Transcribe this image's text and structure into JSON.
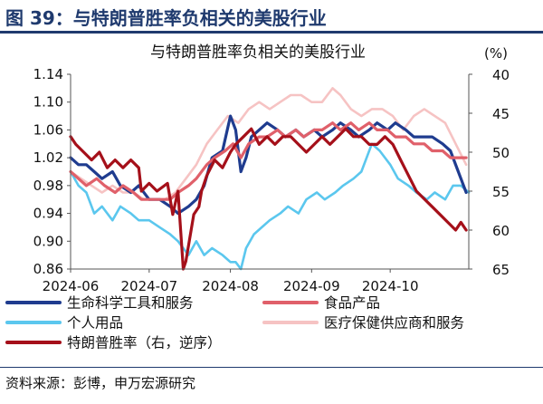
{
  "figure": {
    "title": "图 39：与特朗普胜率负相关的美股行业",
    "source": "资料来源：彭博，申万宏源研究"
  },
  "chart_data": {
    "type": "line",
    "title": "与特朗普胜率负相关的美股行业",
    "y_left": {
      "range": [
        0.86,
        1.14
      ],
      "ticks": [
        "1.14",
        "1.10",
        "1.06",
        "1.02",
        "0.98",
        "0.94",
        "0.90",
        "0.86"
      ]
    },
    "y_right": {
      "label": "(%)",
      "range": [
        40,
        65
      ],
      "inverted": true,
      "ticks": [
        "40",
        "45",
        "50",
        "55",
        "60",
        "65"
      ]
    },
    "x_axis": {
      "start": "2024-06-01",
      "end": "2024-10-31",
      "ticks": [
        "2024-06",
        "2024-07",
        "2024-08",
        "2024-09",
        "2024-10"
      ],
      "tick_dates": [
        "2024-06-01",
        "2024-07-01",
        "2024-08-01",
        "2024-09-01",
        "2024-10-01"
      ]
    },
    "legend_placement": "bottom",
    "series": [
      {
        "name": "生命科学工具和服务",
        "color": "#1f3c8f",
        "axis": "left",
        "width": 3.2,
        "points": [
          [
            "2024-06-01",
            1.02
          ],
          [
            "2024-06-04",
            1.01
          ],
          [
            "2024-06-07",
            1.01
          ],
          [
            "2024-06-10",
            1.0
          ],
          [
            "2024-06-13",
            0.99
          ],
          [
            "2024-06-17",
            1.0
          ],
          [
            "2024-06-20",
            0.98
          ],
          [
            "2024-06-24",
            0.97
          ],
          [
            "2024-06-27",
            0.98
          ],
          [
            "2024-07-01",
            0.96
          ],
          [
            "2024-07-05",
            0.96
          ],
          [
            "2024-07-09",
            0.95
          ],
          [
            "2024-07-12",
            0.94
          ],
          [
            "2024-07-16",
            0.95
          ],
          [
            "2024-07-19",
            0.96
          ],
          [
            "2024-07-22",
            0.98
          ],
          [
            "2024-07-25",
            1.02
          ],
          [
            "2024-07-29",
            1.03
          ],
          [
            "2024-08-01",
            1.08
          ],
          [
            "2024-08-03",
            1.06
          ],
          [
            "2024-08-05",
            1.0
          ],
          [
            "2024-08-07",
            1.02
          ],
          [
            "2024-08-09",
            1.05
          ],
          [
            "2024-08-12",
            1.06
          ],
          [
            "2024-08-15",
            1.07
          ],
          [
            "2024-08-19",
            1.06
          ],
          [
            "2024-08-22",
            1.05
          ],
          [
            "2024-08-26",
            1.06
          ],
          [
            "2024-08-29",
            1.05
          ],
          [
            "2024-09-02",
            1.06
          ],
          [
            "2024-09-05",
            1.05
          ],
          [
            "2024-09-09",
            1.06
          ],
          [
            "2024-09-12",
            1.07
          ],
          [
            "2024-09-16",
            1.06
          ],
          [
            "2024-09-19",
            1.05
          ],
          [
            "2024-09-23",
            1.06
          ],
          [
            "2024-09-26",
            1.07
          ],
          [
            "2024-09-30",
            1.06
          ],
          [
            "2024-10-03",
            1.07
          ],
          [
            "2024-10-07",
            1.06
          ],
          [
            "2024-10-10",
            1.05
          ],
          [
            "2024-10-14",
            1.05
          ],
          [
            "2024-10-17",
            1.05
          ],
          [
            "2024-10-21",
            1.04
          ],
          [
            "2024-10-24",
            1.03
          ],
          [
            "2024-10-27",
            1.0
          ],
          [
            "2024-10-30",
            0.97
          ]
        ]
      },
      {
        "name": "食品产品",
        "color": "#e0606a",
        "axis": "left",
        "width": 3.2,
        "points": [
          [
            "2024-06-01",
            1.0
          ],
          [
            "2024-06-04",
            0.99
          ],
          [
            "2024-06-07",
            0.98
          ],
          [
            "2024-06-11",
            0.99
          ],
          [
            "2024-06-14",
            0.98
          ],
          [
            "2024-06-18",
            0.97
          ],
          [
            "2024-06-21",
            0.98
          ],
          [
            "2024-06-25",
            0.97
          ],
          [
            "2024-06-28",
            0.96
          ],
          [
            "2024-07-02",
            0.96
          ],
          [
            "2024-07-05",
            0.96
          ],
          [
            "2024-07-09",
            0.96
          ],
          [
            "2024-07-12",
            0.97
          ],
          [
            "2024-07-16",
            0.98
          ],
          [
            "2024-07-19",
            0.99
          ],
          [
            "2024-07-23",
            1.01
          ],
          [
            "2024-07-26",
            1.02
          ],
          [
            "2024-07-30",
            1.03
          ],
          [
            "2024-08-02",
            1.04
          ],
          [
            "2024-08-05",
            1.02
          ],
          [
            "2024-08-08",
            1.04
          ],
          [
            "2024-08-12",
            1.05
          ],
          [
            "2024-08-15",
            1.05
          ],
          [
            "2024-08-19",
            1.06
          ],
          [
            "2024-08-22",
            1.05
          ],
          [
            "2024-08-26",
            1.06
          ],
          [
            "2024-08-29",
            1.05
          ],
          [
            "2024-09-02",
            1.06
          ],
          [
            "2024-09-05",
            1.06
          ],
          [
            "2024-09-09",
            1.07
          ],
          [
            "2024-09-12",
            1.06
          ],
          [
            "2024-09-16",
            1.07
          ],
          [
            "2024-09-19",
            1.06
          ],
          [
            "2024-09-23",
            1.07
          ],
          [
            "2024-09-26",
            1.06
          ],
          [
            "2024-09-30",
            1.06
          ],
          [
            "2024-10-03",
            1.05
          ],
          [
            "2024-10-07",
            1.05
          ],
          [
            "2024-10-10",
            1.04
          ],
          [
            "2024-10-14",
            1.04
          ],
          [
            "2024-10-17",
            1.03
          ],
          [
            "2024-10-21",
            1.03
          ],
          [
            "2024-10-24",
            1.02
          ],
          [
            "2024-10-27",
            1.02
          ],
          [
            "2024-10-30",
            1.02
          ]
        ]
      },
      {
        "name": "个人用品",
        "color": "#5bc7ee",
        "axis": "left",
        "width": 2.6,
        "points": [
          [
            "2024-06-01",
            1.0
          ],
          [
            "2024-06-04",
            0.98
          ],
          [
            "2024-06-07",
            0.97
          ],
          [
            "2024-06-10",
            0.94
          ],
          [
            "2024-06-13",
            0.95
          ],
          [
            "2024-06-17",
            0.93
          ],
          [
            "2024-06-20",
            0.95
          ],
          [
            "2024-06-24",
            0.94
          ],
          [
            "2024-06-27",
            0.93
          ],
          [
            "2024-07-01",
            0.93
          ],
          [
            "2024-07-05",
            0.92
          ],
          [
            "2024-07-09",
            0.91
          ],
          [
            "2024-07-12",
            0.9
          ],
          [
            "2024-07-16",
            0.88
          ],
          [
            "2024-07-19",
            0.9
          ],
          [
            "2024-07-22",
            0.88
          ],
          [
            "2024-07-25",
            0.89
          ],
          [
            "2024-07-29",
            0.88
          ],
          [
            "2024-08-01",
            0.87
          ],
          [
            "2024-08-03",
            0.87
          ],
          [
            "2024-08-05",
            0.86
          ],
          [
            "2024-08-07",
            0.89
          ],
          [
            "2024-08-10",
            0.91
          ],
          [
            "2024-08-13",
            0.92
          ],
          [
            "2024-08-16",
            0.93
          ],
          [
            "2024-08-20",
            0.94
          ],
          [
            "2024-08-23",
            0.95
          ],
          [
            "2024-08-27",
            0.94
          ],
          [
            "2024-08-30",
            0.96
          ],
          [
            "2024-09-03",
            0.97
          ],
          [
            "2024-09-06",
            0.96
          ],
          [
            "2024-09-10",
            0.97
          ],
          [
            "2024-09-13",
            0.98
          ],
          [
            "2024-09-17",
            0.99
          ],
          [
            "2024-09-20",
            1.0
          ],
          [
            "2024-09-24",
            1.04
          ],
          [
            "2024-09-27",
            1.03
          ],
          [
            "2024-10-01",
            1.01
          ],
          [
            "2024-10-04",
            0.99
          ],
          [
            "2024-10-08",
            0.98
          ],
          [
            "2024-10-11",
            0.97
          ],
          [
            "2024-10-15",
            0.96
          ],
          [
            "2024-10-18",
            0.97
          ],
          [
            "2024-10-22",
            0.96
          ],
          [
            "2024-10-25",
            0.98
          ],
          [
            "2024-10-28",
            0.98
          ],
          [
            "2024-10-31",
            0.97
          ]
        ]
      },
      {
        "name": "医疗保健供应商和服务",
        "color": "#f6c3c3",
        "axis": "left",
        "width": 2.6,
        "points": [
          [
            "2024-06-01",
            1.0
          ],
          [
            "2024-06-05",
            0.99
          ],
          [
            "2024-06-09",
            0.98
          ],
          [
            "2024-06-13",
            0.97
          ],
          [
            "2024-06-17",
            0.98
          ],
          [
            "2024-06-21",
            0.97
          ],
          [
            "2024-06-25",
            0.97
          ],
          [
            "2024-06-29",
            0.96
          ],
          [
            "2024-07-03",
            0.96
          ],
          [
            "2024-07-07",
            0.96
          ],
          [
            "2024-07-11",
            0.97
          ],
          [
            "2024-07-15",
            0.99
          ],
          [
            "2024-07-19",
            1.01
          ],
          [
            "2024-07-23",
            1.04
          ],
          [
            "2024-07-27",
            1.06
          ],
          [
            "2024-07-31",
            1.08
          ],
          [
            "2024-08-04",
            1.07
          ],
          [
            "2024-08-08",
            1.09
          ],
          [
            "2024-08-12",
            1.1
          ],
          [
            "2024-08-16",
            1.09
          ],
          [
            "2024-08-20",
            1.1
          ],
          [
            "2024-08-24",
            1.11
          ],
          [
            "2024-08-28",
            1.11
          ],
          [
            "2024-09-01",
            1.1
          ],
          [
            "2024-09-05",
            1.1
          ],
          [
            "2024-09-09",
            1.12
          ],
          [
            "2024-09-12",
            1.11
          ],
          [
            "2024-09-16",
            1.09
          ],
          [
            "2024-09-20",
            1.08
          ],
          [
            "2024-09-24",
            1.09
          ],
          [
            "2024-09-28",
            1.09
          ],
          [
            "2024-10-02",
            1.08
          ],
          [
            "2024-10-06",
            1.06
          ],
          [
            "2024-10-10",
            1.08
          ],
          [
            "2024-10-14",
            1.09
          ],
          [
            "2024-10-18",
            1.08
          ],
          [
            "2024-10-22",
            1.07
          ],
          [
            "2024-10-26",
            1.04
          ],
          [
            "2024-10-30",
            1.01
          ]
        ]
      },
      {
        "name": "特朗普胜率（右，逆序）",
        "color": "#a5101a",
        "axis": "right",
        "width": 3.2,
        "points": [
          [
            "2024-06-01",
            48
          ],
          [
            "2024-06-03",
            49
          ],
          [
            "2024-06-06",
            50
          ],
          [
            "2024-06-09",
            51
          ],
          [
            "2024-06-12",
            50
          ],
          [
            "2024-06-15",
            52
          ],
          [
            "2024-06-18",
            51
          ],
          [
            "2024-06-21",
            52
          ],
          [
            "2024-06-24",
            51
          ],
          [
            "2024-06-27",
            52
          ],
          [
            "2024-06-28",
            55
          ],
          [
            "2024-07-01",
            54
          ],
          [
            "2024-07-04",
            55
          ],
          [
            "2024-07-08",
            54
          ],
          [
            "2024-07-10",
            58
          ],
          [
            "2024-07-12",
            55
          ],
          [
            "2024-07-14",
            65
          ],
          [
            "2024-07-15",
            64
          ],
          [
            "2024-07-18",
            58
          ],
          [
            "2024-07-20",
            57
          ],
          [
            "2024-07-21",
            55
          ],
          [
            "2024-07-23",
            53
          ],
          [
            "2024-07-26",
            51
          ],
          [
            "2024-07-29",
            52
          ],
          [
            "2024-08-01",
            50
          ],
          [
            "2024-08-03",
            49
          ],
          [
            "2024-08-06",
            48
          ],
          [
            "2024-08-09",
            47
          ],
          [
            "2024-08-12",
            49
          ],
          [
            "2024-08-15",
            48
          ],
          [
            "2024-08-18",
            49
          ],
          [
            "2024-08-21",
            48
          ],
          [
            "2024-08-24",
            48
          ],
          [
            "2024-08-27",
            49
          ],
          [
            "2024-08-30",
            50
          ],
          [
            "2024-09-02",
            49
          ],
          [
            "2024-09-05",
            48
          ],
          [
            "2024-09-08",
            49
          ],
          [
            "2024-09-11",
            48
          ],
          [
            "2024-09-14",
            47
          ],
          [
            "2024-09-17",
            48
          ],
          [
            "2024-09-20",
            48
          ],
          [
            "2024-09-23",
            49
          ],
          [
            "2024-09-26",
            49
          ],
          [
            "2024-09-29",
            48
          ],
          [
            "2024-10-02",
            49
          ],
          [
            "2024-10-05",
            51
          ],
          [
            "2024-10-08",
            53
          ],
          [
            "2024-10-11",
            55
          ],
          [
            "2024-10-14",
            56
          ],
          [
            "2024-10-17",
            57
          ],
          [
            "2024-10-20",
            58
          ],
          [
            "2024-10-23",
            59
          ],
          [
            "2024-10-26",
            60
          ],
          [
            "2024-10-28",
            59
          ],
          [
            "2024-10-30",
            60
          ]
        ]
      }
    ]
  },
  "legend_layout": [
    {
      "series": 0,
      "col": 0,
      "row": 0
    },
    {
      "series": 1,
      "col": 1,
      "row": 0
    },
    {
      "series": 2,
      "col": 0,
      "row": 1
    },
    {
      "series": 3,
      "col": 1,
      "row": 1
    },
    {
      "series": 4,
      "col": 0,
      "row": 2
    }
  ]
}
